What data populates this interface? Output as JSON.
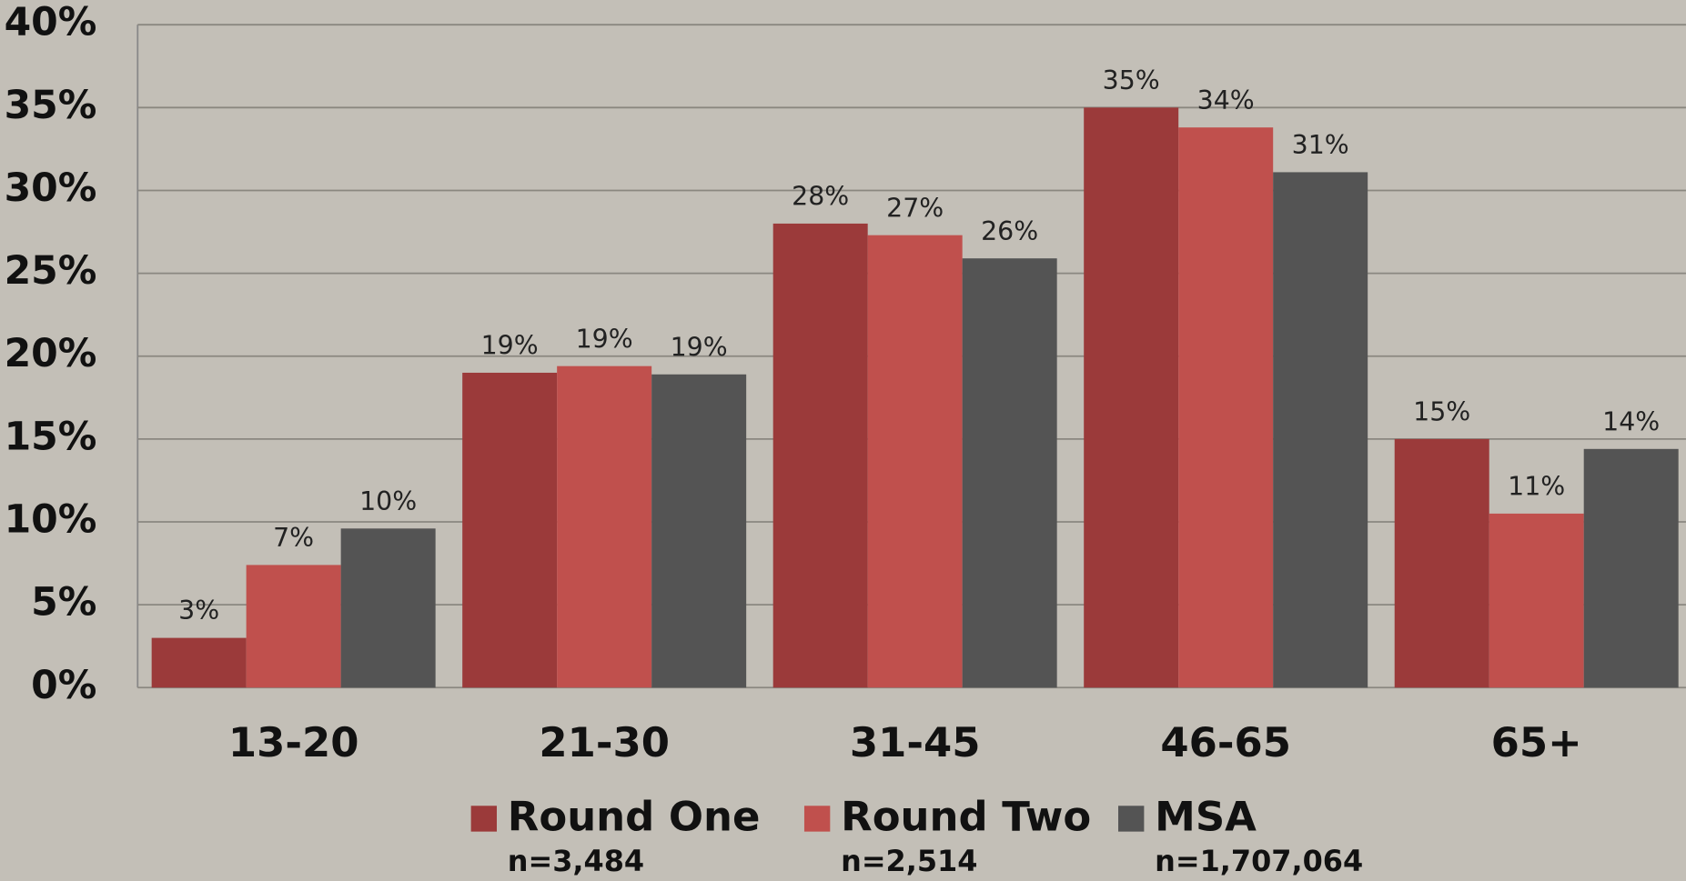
{
  "chart_data": {
    "type": "bar",
    "categories": [
      "13-20",
      "21-30",
      "31-45",
      "46-65",
      "65+"
    ],
    "series": [
      {
        "name": "Round One",
        "sample": "n=3,484",
        "color": "#9b3a3a",
        "values": [
          3,
          19,
          28,
          35,
          15
        ],
        "value_labels": [
          "3%",
          "19%",
          "28%",
          "35%",
          "15%"
        ]
      },
      {
        "name": "Round Two",
        "sample": "n=2,514",
        "color": "#c0504d",
        "values": [
          7.4,
          19.4,
          27.3,
          33.8,
          10.5
        ],
        "value_labels": [
          "7%",
          "19%",
          "27%",
          "34%",
          "11%"
        ]
      },
      {
        "name": "MSA",
        "sample": "n=1,707,064",
        "color": "#545454",
        "values": [
          9.6,
          18.9,
          25.9,
          31.1,
          14.4
        ],
        "value_labels": [
          "10%",
          "19%",
          "26%",
          "31%",
          "14%"
        ]
      }
    ],
    "ylim": [
      0,
      40
    ],
    "yticks": [
      {
        "value": 0,
        "label": "0%"
      },
      {
        "value": 5,
        "label": "5%"
      },
      {
        "value": 10,
        "label": "10%"
      },
      {
        "value": 15,
        "label": "15%"
      },
      {
        "value": 20,
        "label": "20%"
      },
      {
        "value": 25,
        "label": "25%"
      },
      {
        "value": 30,
        "label": "30%"
      },
      {
        "value": 35,
        "label": "35%"
      },
      {
        "value": 40,
        "label": "40%"
      }
    ],
    "grid": true
  }
}
